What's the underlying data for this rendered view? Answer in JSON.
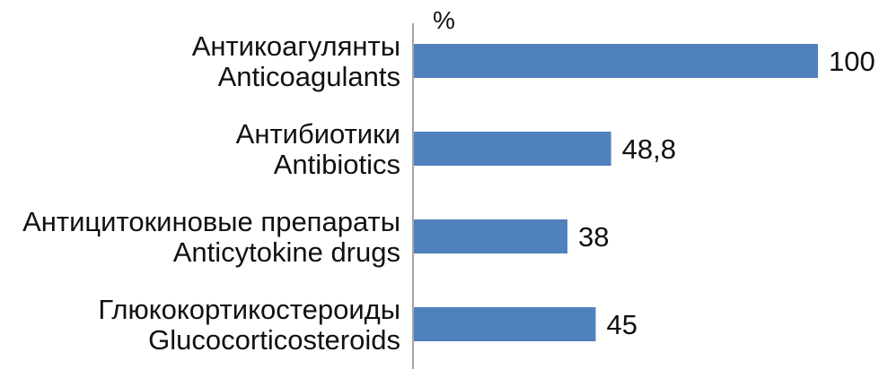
{
  "chart_data": {
    "type": "bar",
    "orientation": "horizontal",
    "unit": "%",
    "categories": [
      [
        "Антикоагулянты",
        "Anticoagulants"
      ],
      [
        "Антибиотики",
        "Antibiotics"
      ],
      [
        "Антицитокиновые препараты",
        "Anticytokine drugs"
      ],
      [
        "Глюкокортикостероиды",
        "Glucocorticosteroids"
      ]
    ],
    "values": [
      100,
      48.8,
      38,
      45
    ],
    "value_labels": [
      "100",
      "48,8",
      "38",
      "45"
    ],
    "xlim": [
      0,
      100
    ],
    "grid": false,
    "bar_color": "#4f81bd"
  }
}
